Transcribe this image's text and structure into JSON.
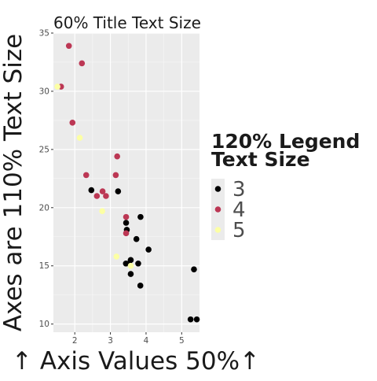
{
  "chart_data": {
    "type": "scatter",
    "title": "60% Title Text Size",
    "xlabel": "↑ Axis Values 50%↑",
    "ylabel": "Axes are 110% Text Size",
    "xlim": [
      1.4,
      5.5
    ],
    "ylim": [
      9.3,
      35
    ],
    "x_ticks": [
      2,
      3,
      4,
      5
    ],
    "y_ticks": [
      10,
      15,
      20,
      25,
      30,
      35
    ],
    "grid": true,
    "legend_position": "right",
    "legend": {
      "title_line1": "120% Legend",
      "title_line2": "Text Size"
    },
    "series": [
      {
        "name": "3",
        "color": "#000000",
        "points": [
          [
            2.465,
            21.5
          ],
          [
            3.215,
            21.4
          ],
          [
            3.44,
            18.7
          ],
          [
            3.46,
            18.1
          ],
          [
            3.57,
            15.5
          ],
          [
            3.52,
            15.2
          ],
          [
            3.435,
            15.2
          ],
          [
            3.84,
            13.3
          ],
          [
            3.845,
            19.2
          ],
          [
            3.73,
            17.3
          ],
          [
            3.78,
            15.2
          ],
          [
            4.07,
            16.4
          ],
          [
            5.25,
            10.4
          ],
          [
            5.345,
            14.7
          ],
          [
            5.424,
            10.4
          ],
          [
            3.57,
            14.3
          ]
        ]
      },
      {
        "name": "4",
        "color": "#BC3754",
        "points": [
          [
            2.32,
            22.8
          ],
          [
            3.19,
            24.4
          ],
          [
            3.15,
            22.8
          ],
          [
            3.44,
            19.2
          ],
          [
            3.44,
            17.8
          ],
          [
            2.2,
            32.4
          ],
          [
            1.615,
            30.4
          ],
          [
            1.835,
            33.9
          ],
          [
            1.935,
            27.3
          ],
          [
            2.78,
            21.4
          ],
          [
            2.875,
            21.0
          ],
          [
            2.62,
            21.0
          ]
        ]
      },
      {
        "name": "5",
        "color": "#FCFFA4",
        "points": [
          [
            1.513,
            30.4
          ],
          [
            2.14,
            26.0
          ],
          [
            2.77,
            19.7
          ],
          [
            3.17,
            15.8
          ],
          [
            3.57,
            15.0
          ]
        ]
      }
    ]
  }
}
